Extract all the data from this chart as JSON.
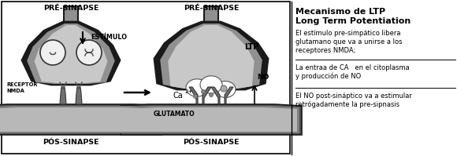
{
  "text_color": "#000000",
  "pre_sinapse_label": "PRÉ-SINAPSE",
  "pos_sinapse_label": "PÓS-SINAPSE",
  "receptor_label": "RECEPTOR\nNMDA",
  "estimulo_label": "ESTÍMULO",
  "ltp_label": "LTP",
  "glutamato_label": "GLUTAMATO",
  "ca_label": "Ca",
  "ca_sup": "2+",
  "no_label": "NO",
  "title_line1": "Mecanismo de LTP",
  "title_line2": "Long Term Potentiation",
  "section1_line1": "El estímulo pre-simpático libera",
  "section1_line2": "glutamano que va a unirse a los",
  "section1_line3": "receptores NMDA;",
  "section2_line1": "La entraa de CA   en el citoplasma",
  "section2_line2": "y producción de NO",
  "section3_line1": "El NO post-sináptico va a estimular",
  "section3_line2": "retrógadamente la pre-sipnasis",
  "outer_dark": "#1a1a1a",
  "body_gray": "#909090",
  "body_light": "#c8c8c8",
  "inner_light": "#e0e0e0",
  "post_dark": "#505050",
  "post_mid": "#808080",
  "post_light": "#b8b8b8",
  "vesicle_white": "#f0f0f0",
  "receptor_color": "#707070"
}
